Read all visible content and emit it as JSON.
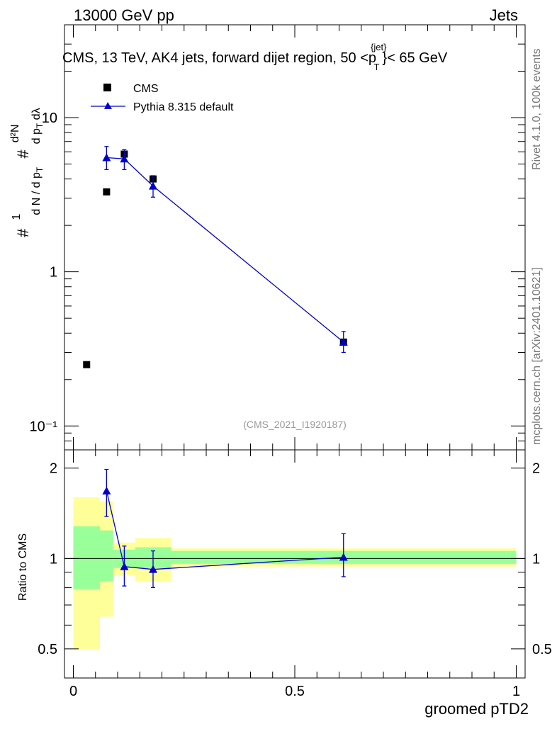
{
  "header": {
    "left": "13000 GeV pp",
    "right": "Jets"
  },
  "side_text": {
    "rivet": "Rivet 4.1.0,  100k events",
    "mcplots": "mcplots.cern.ch [arXiv:2401.10621]"
  },
  "watermark": "(CMS_2021_I1920187)",
  "colors": {
    "mc": "#0000cc",
    "band_inner": "#99ff99",
    "band_outer": "#ffff99",
    "data": "#000000"
  },
  "chart_data": [
    {
      "type": "scatter",
      "title": "CMS, 13 TeV, AK4 jets, forward dijet region, 50 <p",
      "title_sup": "{jet}",
      "title_sub": "T",
      "title_end": "}< 65 GeV",
      "ylabel": "#  1 / dN/dp_T  #  d²N / dp_T dλ",
      "xlabel": "",
      "yscale": "log",
      "ylim": [
        0.07,
        40
      ],
      "xlim": [
        -0.02,
        1.02
      ],
      "ytick_labels": [
        "10⁻¹",
        "1",
        "10"
      ],
      "legend": {
        "position": "top-left",
        "data_label": "CMS",
        "mc_label": "Pythia 8.315 default"
      },
      "series": [
        {
          "name": "CMS",
          "x": [
            0.03,
            0.075,
            0.115,
            0.18,
            0.61
          ],
          "y": [
            0.25,
            3.3,
            5.8,
            4.0,
            0.35
          ]
        },
        {
          "name": "Pythia 8.315 default",
          "x": [
            0.075,
            0.115,
            0.18,
            0.61
          ],
          "y": [
            5.5,
            5.4,
            3.6,
            0.35
          ],
          "err_up": [
            1.0,
            0.8,
            0.6,
            0.06
          ],
          "err_down": [
            0.9,
            0.8,
            0.55,
            0.05
          ]
        }
      ]
    },
    {
      "type": "scatter",
      "title": "",
      "ylabel": "Ratio to CMS",
      "xlabel": "groomed pTD2",
      "yscale": "log",
      "ylim": [
        0.4,
        2.3
      ],
      "xlim": [
        -0.02,
        1.02
      ],
      "ytick_labels": [
        "0.5",
        "1",
        "2"
      ],
      "xtick_labels": [
        "0",
        "0.5",
        "1"
      ],
      "bands": [
        {
          "x0": 0.0,
          "x1": 0.06,
          "inner": [
            0.79,
            1.28
          ],
          "outer": [
            0.5,
            1.6
          ]
        },
        {
          "x0": 0.06,
          "x1": 0.09,
          "inner": [
            0.84,
            1.24
          ],
          "outer": [
            0.64,
            1.55
          ]
        },
        {
          "x0": 0.09,
          "x1": 0.14,
          "inner": [
            0.93,
            1.07
          ],
          "outer": [
            0.88,
            1.13
          ]
        },
        {
          "x0": 0.14,
          "x1": 0.22,
          "inner": [
            0.93,
            1.09
          ],
          "outer": [
            0.84,
            1.17
          ]
        },
        {
          "x0": 0.22,
          "x1": 1.0,
          "inner": [
            0.96,
            1.06
          ],
          "outer": [
            0.94,
            1.08
          ]
        }
      ],
      "series": [
        {
          "name": "Pythia 8.315 default",
          "x": [
            0.075,
            0.115,
            0.18,
            0.61
          ],
          "y": [
            1.68,
            0.94,
            0.92,
            1.01
          ],
          "err_up": [
            0.3,
            0.16,
            0.14,
            0.2
          ],
          "err_down": [
            0.3,
            0.13,
            0.12,
            0.14
          ]
        }
      ]
    }
  ]
}
